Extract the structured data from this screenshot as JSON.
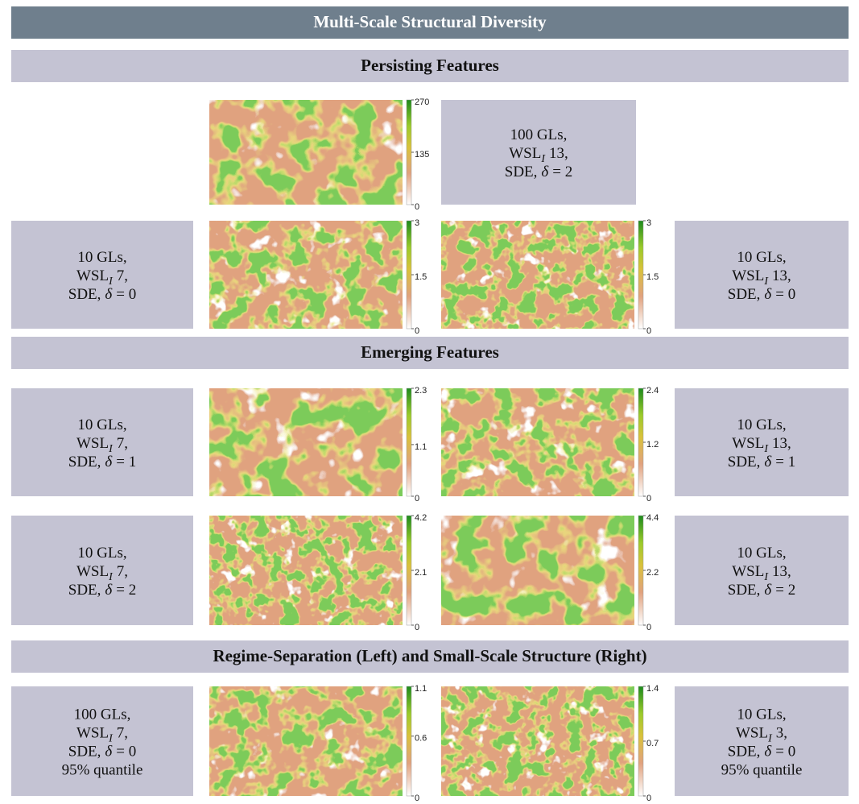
{
  "header": {
    "title": "Multi-Scale Structural Diversity"
  },
  "sections": [
    {
      "title": "Persisting Features",
      "rows": [
        {
          "items": [
            {
              "kind": "map",
              "ticks": [
                0,
                135,
                270
              ]
            },
            {
              "kind": "label",
              "gls": "100 GLs,",
              "wsl": "WSL",
              "sub": "I",
              "scale": "13,",
              "sde": "SDE,",
              "delta": "δ",
              "eq": "= 2"
            }
          ]
        },
        {
          "items": [
            {
              "kind": "label",
              "gls": "10 GLs,",
              "wsl": "WSL",
              "sub": "I",
              "scale": "7,",
              "sde": "SDE,",
              "delta": "δ",
              "eq": "= 0"
            },
            {
              "kind": "map",
              "ticks": [
                0,
                1.5,
                3
              ]
            },
            {
              "kind": "map",
              "ticks": [
                0,
                1.5,
                3
              ]
            },
            {
              "kind": "label",
              "gls": "10 GLs,",
              "wsl": "WSL",
              "sub": "I",
              "scale": "13,",
              "sde": "SDE,",
              "delta": "δ",
              "eq": "= 0"
            }
          ]
        }
      ]
    },
    {
      "title": "Emerging Features",
      "rows": [
        {
          "items": [
            {
              "kind": "label",
              "gls": "10 GLs,",
              "wsl": "WSL",
              "sub": "I",
              "scale": "7,",
              "sde": "SDE,",
              "delta": "δ",
              "eq": "= 1"
            },
            {
              "kind": "map",
              "ticks": [
                0,
                1.1,
                2.3
              ]
            },
            {
              "kind": "map",
              "ticks": [
                0,
                1.2,
                2.4
              ]
            },
            {
              "kind": "label",
              "gls": "10 GLs,",
              "wsl": "WSL",
              "sub": "I",
              "scale": "13,",
              "sde": "SDE,",
              "delta": "δ",
              "eq": "= 1"
            }
          ]
        },
        {
          "items": [
            {
              "kind": "label",
              "gls": "10 GLs,",
              "wsl": "WSL",
              "sub": "I",
              "scale": "7,",
              "sde": "SDE,",
              "delta": "δ",
              "eq": "= 2"
            },
            {
              "kind": "map",
              "ticks": [
                0,
                2.1,
                4.2
              ]
            },
            {
              "kind": "map",
              "ticks": [
                0,
                2.2,
                4.4
              ]
            },
            {
              "kind": "label",
              "gls": "10 GLs,",
              "wsl": "WSL",
              "sub": "I",
              "scale": "13,",
              "sde": "SDE,",
              "delta": "δ",
              "eq": "= 2"
            }
          ]
        }
      ]
    },
    {
      "title": "Regime-Separation (Left) and Small-Scale Structure (Right)",
      "rows": [
        {
          "items": [
            {
              "kind": "label",
              "gls": "100 GLs,",
              "wsl": "WSL",
              "sub": "I",
              "scale": "7,",
              "sde": "SDE,",
              "delta": "δ",
              "eq": "= 0",
              "extra": "95% quantile"
            },
            {
              "kind": "map",
              "ticks": [
                0,
                0.6,
                1.1
              ]
            },
            {
              "kind": "map",
              "ticks": [
                0,
                0.7,
                1.4
              ]
            },
            {
              "kind": "label",
              "gls": "10 GLs,",
              "wsl": "WSL",
              "sub": "I",
              "scale": "3,",
              "sde": "SDE,",
              "delta": "δ",
              "eq": "= 0",
              "extra": "95% quantile"
            }
          ]
        }
      ]
    }
  ]
}
